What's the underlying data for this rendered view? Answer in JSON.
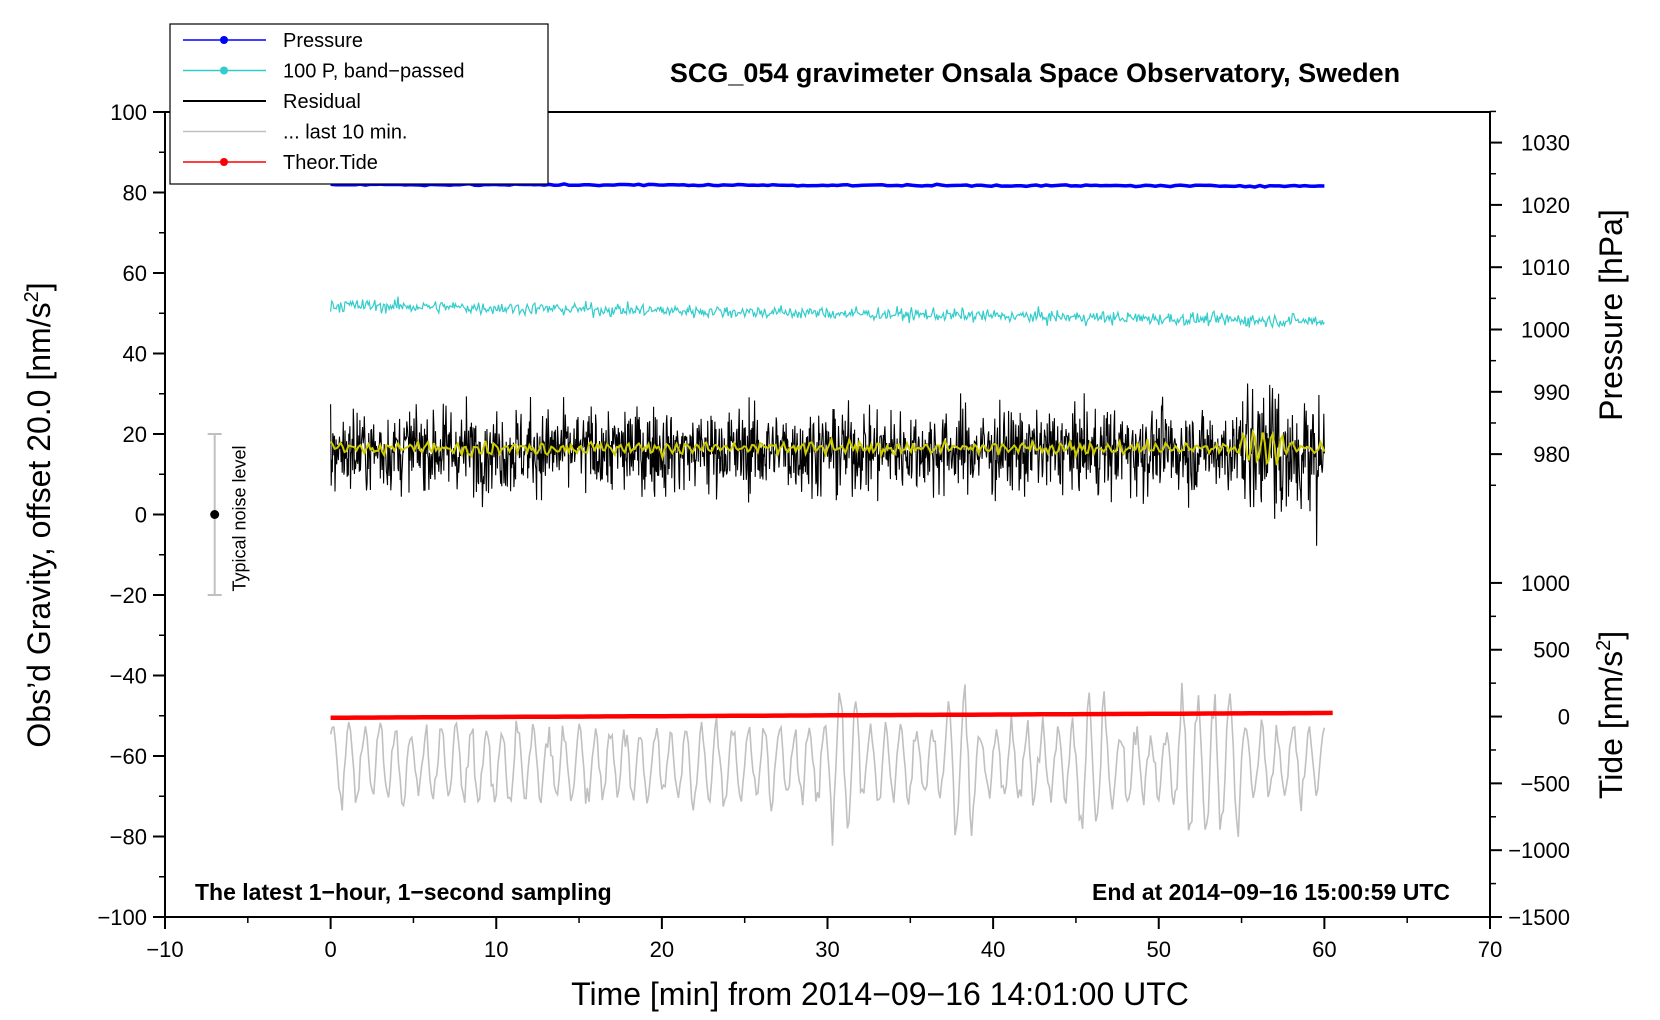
{
  "chart_data": {
    "type": "line",
    "title": "SCG_054 gravimeter Onsala Space Observatory, Sweden",
    "xlabel": "Time [min] from 2014−09−16 14:01:00 UTC",
    "ylabel_left_main": "Obs’d Gravity, offset 20.0 [nm/s",
    "ylabel_left_sup": "2",
    "ylabel_left_end": "]",
    "ylabel_right_top": "Pressure [hPa]",
    "ylabel_right_bottom_main": "Tide [nm/s",
    "ylabel_right_bottom_sup": "2",
    "ylabel_right_bottom_end": "]",
    "xlim": [
      -10,
      70
    ],
    "ylim": [
      -100,
      100
    ],
    "x_ticks": [
      "−10",
      "0",
      "10",
      "20",
      "30",
      "40",
      "50",
      "60",
      "70"
    ],
    "x_tick_values": [
      -10,
      0,
      10,
      20,
      30,
      40,
      50,
      60,
      70
    ],
    "y_ticks": [
      "100",
      "80",
      "60",
      "40",
      "20",
      "0",
      "−20",
      "−40",
      "−60",
      "−80",
      "−100"
    ],
    "y_tick_values": [
      100,
      80,
      60,
      40,
      20,
      0,
      -20,
      -40,
      -60,
      -80,
      -100
    ],
    "pressure_axis": {
      "ticks": [
        "1030",
        "1020",
        "1010",
        "1000",
        "990",
        "980"
      ],
      "tick_values": [
        1030,
        1020,
        1010,
        1000,
        990,
        980
      ],
      "map": {
        "p1": 1030,
        "y1": 92.4,
        "p2": 980,
        "y2": 15.0
      }
    },
    "tide_axis": {
      "ticks": [
        "1000",
        "500",
        "0",
        "−500",
        "−1000",
        "−1500"
      ],
      "tick_values": [
        1000,
        500,
        0,
        -500,
        -1000,
        -1500
      ],
      "map": {
        "t1": 1000,
        "y1": -17,
        "t2": -1500,
        "y2": -100
      }
    },
    "legend": [
      {
        "label": "Pressure",
        "color": "#0000ff",
        "marker": true
      },
      {
        "label": "100 P, band−passed",
        "color": "#33cccc",
        "marker": true
      },
      {
        "label": "Residual",
        "color": "#000000",
        "marker": false
      },
      {
        "label": "... last 10 min.",
        "color": "#c0c0c0",
        "marker": false
      },
      {
        "label": "Theor.Tide",
        "color": "#ff0000",
        "marker": true
      }
    ],
    "series": [
      {
        "name": "Pressure",
        "color": "#0000ff",
        "x_range": [
          0,
          60
        ],
        "y_start": 82.0,
        "y_end": 81.6,
        "noise": 0.1
      },
      {
        "name": "100 P, band−passed",
        "color": "#33cccc",
        "x_range": [
          0,
          60
        ],
        "y_start": 52.0,
        "y_end": 48.0,
        "noise": 0.8
      },
      {
        "name": "Residual",
        "color": "#000000",
        "x_range": [
          0,
          60
        ],
        "y_center": 16.0,
        "typical_range": [
          0,
          32
        ],
        "extremes": [
          -9,
          43
        ]
      },
      {
        "name": "... last 10 min.",
        "color": "#c0c0c0",
        "x_range": [
          0,
          60
        ],
        "y_center": -62,
        "typical_range": [
          -78,
          -53
        ],
        "extremes": [
          -87,
          -35
        ]
      },
      {
        "name": "Smoothed residual",
        "color": "#cccc00",
        "x_range": [
          0,
          60
        ],
        "y_center": 16.5
      },
      {
        "name": "Theor.Tide",
        "color": "#ff0000",
        "x_range": [
          0,
          60.5
        ],
        "y_start": -50.5,
        "y_end": -49.3
      }
    ],
    "noise_bar": {
      "label": "Typical noise level",
      "x": -7,
      "y_low": -20,
      "y_high": 20,
      "y_center": 0
    },
    "annotations": {
      "bottom_left": "The latest 1−hour, 1−second sampling",
      "bottom_right": "End at 2014−09−16 15:00:59 UTC"
    }
  },
  "colors": {
    "pressure": "#0000ff",
    "bandpassed": "#33cccc",
    "residual": "#000000",
    "last10": "#c0c0c0",
    "smoothed": "#cccc00",
    "tide": "#ff0000"
  }
}
